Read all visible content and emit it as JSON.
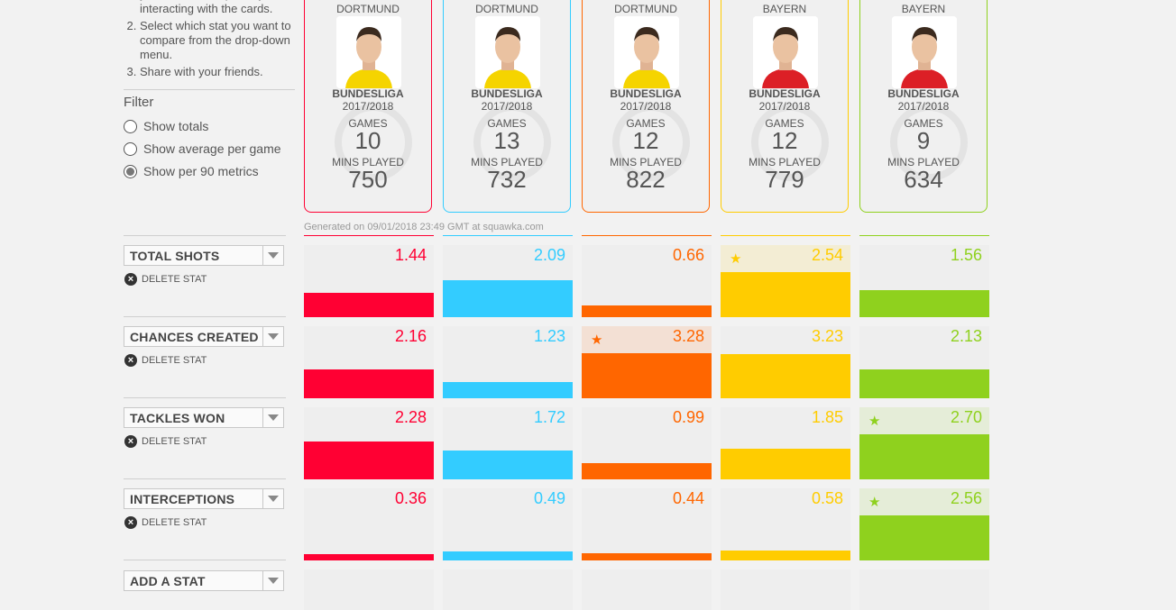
{
  "instructions": {
    "items": [
      "you want to compare by interacting with the cards.",
      "Select which stat you want to compare from the drop-down menu.",
      "Share with your friends."
    ]
  },
  "filter": {
    "title": "Filter",
    "options": [
      {
        "label": "Show totals",
        "selected": false
      },
      {
        "label": "Show average per game",
        "selected": false
      },
      {
        "label": "Show per 90 metrics",
        "selected": true
      }
    ]
  },
  "colors": {
    "player1": "#ff0033",
    "player2": "#33ccff",
    "player3": "#ff6600",
    "player4": "#ffcc00",
    "player5": "#8fd11e"
  },
  "players": [
    {
      "club": "DORTMUND",
      "league": "BUNDESLIGA",
      "season": "2017/2018",
      "games_label": "GAMES",
      "games": "10",
      "mins_label": "MINS PLAYED",
      "mins": "750",
      "kit": "#f5d400"
    },
    {
      "club": "DORTMUND",
      "league": "BUNDESLIGA",
      "season": "2017/2018",
      "games_label": "GAMES",
      "games": "13",
      "mins_label": "MINS PLAYED",
      "mins": "732",
      "kit": "#f5d400"
    },
    {
      "club": "DORTMUND",
      "league": "BUNDESLIGA",
      "season": "2017/2018",
      "games_label": "GAMES",
      "games": "12",
      "mins_label": "MINS PLAYED",
      "mins": "822",
      "kit": "#f5d400"
    },
    {
      "club": "BAYERN",
      "league": "BUNDESLIGA",
      "season": "2017/2018",
      "games_label": "GAMES",
      "games": "12",
      "mins_label": "MINS PLAYED",
      "mins": "779",
      "kit": "#dc1f26"
    },
    {
      "club": "BAYERN",
      "league": "BUNDESLIGA",
      "season": "2017/2018",
      "games_label": "GAMES",
      "games": "9",
      "mins_label": "MINS PLAYED",
      "mins": "634",
      "kit": "#dc1f26"
    }
  ],
  "generated": "Generated on 09/01/2018 23:49 GMT at squawka.com",
  "delete_label": "DELETE STAT",
  "add_stat_label": "ADD A STAT",
  "stats": [
    {
      "name": "TOTAL SHOTS",
      "values": [
        "1.44",
        "2.09",
        "0.66",
        "2.54",
        "1.56"
      ],
      "fractions": [
        0.34,
        0.51,
        0.16,
        0.62,
        0.38
      ],
      "leader": 3
    },
    {
      "name": "CHANCES CREATED",
      "values": [
        "2.16",
        "1.23",
        "3.28",
        "3.23",
        "2.13"
      ],
      "fractions": [
        0.4,
        0.23,
        0.62,
        0.61,
        0.4
      ],
      "leader": 2
    },
    {
      "name": "TACKLES WON",
      "values": [
        "2.28",
        "1.72",
        "0.99",
        "1.85",
        "2.70"
      ],
      "fractions": [
        0.52,
        0.4,
        0.22,
        0.42,
        0.62
      ],
      "leader": 4
    },
    {
      "name": "INTERCEPTIONS",
      "values": [
        "0.36",
        "0.49",
        "0.44",
        "0.58",
        "2.56"
      ],
      "fractions": [
        0.09,
        0.12,
        0.1,
        0.14,
        0.62
      ],
      "leader": 4
    }
  ]
}
